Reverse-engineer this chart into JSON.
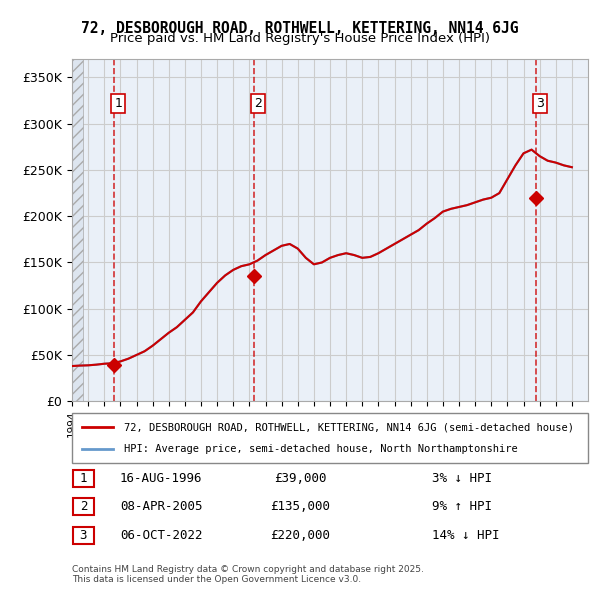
{
  "title": "72, DESBOROUGH ROAD, ROTHWELL, KETTERING, NN14 6JG",
  "subtitle": "Price paid vs. HM Land Registry's House Price Index (HPI)",
  "ylabel": "",
  "xlim_start": 1994.0,
  "xlim_end": 2026.0,
  "ylim_bottom": 0,
  "ylim_top": 370000,
  "yticks": [
    0,
    50000,
    100000,
    150000,
    200000,
    250000,
    300000,
    350000
  ],
  "ytick_labels": [
    "£0",
    "£50K",
    "£100K",
    "£150K",
    "£200K",
    "£250K",
    "£300K",
    "£350K"
  ],
  "hpi_color": "#6699cc",
  "sale_color": "#cc0000",
  "hatch_color": "#cccccc",
  "grid_color": "#cccccc",
  "sale_points": [
    {
      "year": 1996.619,
      "price": 39000,
      "label": "1"
    },
    {
      "year": 2005.271,
      "price": 135000,
      "label": "2"
    },
    {
      "year": 2022.757,
      "price": 220000,
      "label": "3"
    }
  ],
  "vline_years": [
    1996.619,
    2005.271,
    2022.757
  ],
  "legend_entries": [
    "72, DESBOROUGH ROAD, ROTHWELL, KETTERING, NN14 6JG (semi-detached house)",
    "HPI: Average price, semi-detached house, North Northamptonshire"
  ],
  "table_rows": [
    {
      "num": "1",
      "date": "16-AUG-1996",
      "price": "£39,000",
      "hpi": "3% ↓ HPI"
    },
    {
      "num": "2",
      "date": "08-APR-2005",
      "price": "£135,000",
      "hpi": "9% ↑ HPI"
    },
    {
      "num": "3",
      "date": "06-OCT-2022",
      "price": "£220,000",
      "hpi": "14% ↓ HPI"
    }
  ],
  "footnote": "Contains HM Land Registry data © Crown copyright and database right 2025.\nThis data is licensed under the Open Government Licence v3.0.",
  "background_color": "#ffffff",
  "plot_bg_color": "#eaf0f8",
  "hatch_bg_color": "#dde5ef"
}
